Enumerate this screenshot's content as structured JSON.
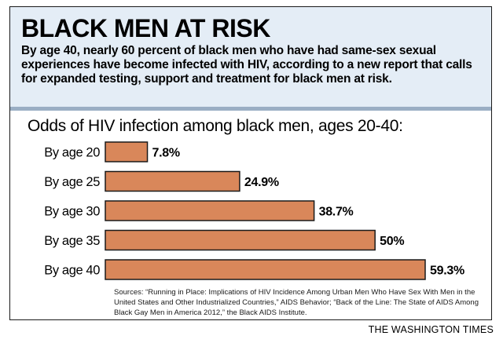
{
  "header": {
    "title": "BLACK MEN AT RISK",
    "subtitle": "By age 40, nearly 60 percent of black men who have had same-sex sexual experiences have become infected with HIV, according to a new report that calls for expanded testing, support and treatment for black men at risk."
  },
  "colors": {
    "bar": "#d9875a",
    "bar_stroke": "#1a1a1a",
    "header_bg": "#e4edf6",
    "rule": "#9aaec4"
  },
  "chart_data": {
    "type": "bar",
    "orientation": "horizontal",
    "title": "Odds of HIV infection among black men, ages 20-40:",
    "categories": [
      "By age 20",
      "By age 25",
      "By age 30",
      "By age 35",
      "By age 40"
    ],
    "values": [
      7.8,
      24.9,
      38.7,
      50,
      59.3
    ],
    "value_labels": [
      "7.8%",
      "24.9%",
      "38.7%",
      "50%",
      "59.3%"
    ],
    "unit": "%",
    "xlim": [
      0,
      59.3
    ],
    "xlabel": "",
    "ylabel": ""
  },
  "footer": {
    "sources": "Sources: “Running in Place: Implications of HIV Incidence Among Urban Men Who Have Sex With Men in the United States and Other Industrialized Countries,” AIDS Behavior; “Back of the Line: The State of AIDS Among Black Gay Men in America 2012,” the Black AIDS Institute.",
    "credit": "THE WASHINGTON TIMES"
  }
}
